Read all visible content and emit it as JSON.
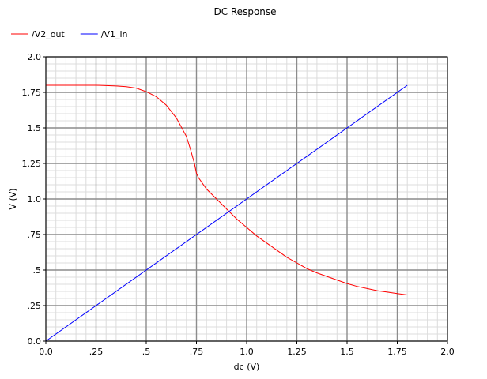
{
  "chart_data": {
    "type": "line",
    "title": "DC Response",
    "xlabel": "dc (V)",
    "ylabel": "V (V)",
    "xlim": [
      0.0,
      2.0
    ],
    "ylim": [
      0.0,
      2.0
    ],
    "x_ticks": [
      0.0,
      0.25,
      0.5,
      0.75,
      1.0,
      1.25,
      1.5,
      1.75,
      2.0
    ],
    "x_tick_labels": [
      "0.0",
      ".25",
      ".5",
      ".75",
      "1.0",
      "1.25",
      "1.5",
      "1.75",
      "2.0"
    ],
    "y_ticks": [
      0.0,
      0.25,
      0.5,
      0.75,
      1.0,
      1.25,
      1.5,
      1.75,
      2.0
    ],
    "y_tick_labels": [
      "0.0",
      ".25",
      ".5",
      ".75",
      "1.0",
      "1.25",
      "1.5",
      "1.75",
      "2.0"
    ],
    "grid": true,
    "minor_grid": true,
    "legend_position": "top-left",
    "series": [
      {
        "name": "/V2_out",
        "color": "#ff0000",
        "x": [
          0.0,
          0.1,
          0.2,
          0.25,
          0.3,
          0.35,
          0.4,
          0.45,
          0.5,
          0.55,
          0.6,
          0.65,
          0.7,
          0.72,
          0.74,
          0.75,
          0.76,
          0.8,
          0.85,
          0.9,
          0.95,
          1.0,
          1.05,
          1.1,
          1.15,
          1.2,
          1.25,
          1.3,
          1.35,
          1.4,
          1.45,
          1.5,
          1.55,
          1.6,
          1.65,
          1.7,
          1.75,
          1.8
        ],
        "y": [
          1.8,
          1.8,
          1.8,
          1.8,
          1.798,
          1.795,
          1.79,
          1.78,
          1.755,
          1.72,
          1.66,
          1.57,
          1.44,
          1.35,
          1.25,
          1.18,
          1.15,
          1.07,
          1.0,
          0.93,
          0.86,
          0.8,
          0.74,
          0.69,
          0.64,
          0.59,
          0.55,
          0.51,
          0.48,
          0.455,
          0.43,
          0.405,
          0.385,
          0.37,
          0.355,
          0.345,
          0.335,
          0.325
        ]
      },
      {
        "name": "/V1_in",
        "color": "#0000ff",
        "x": [
          0.0,
          1.8
        ],
        "y": [
          0.0,
          1.8
        ]
      }
    ]
  }
}
